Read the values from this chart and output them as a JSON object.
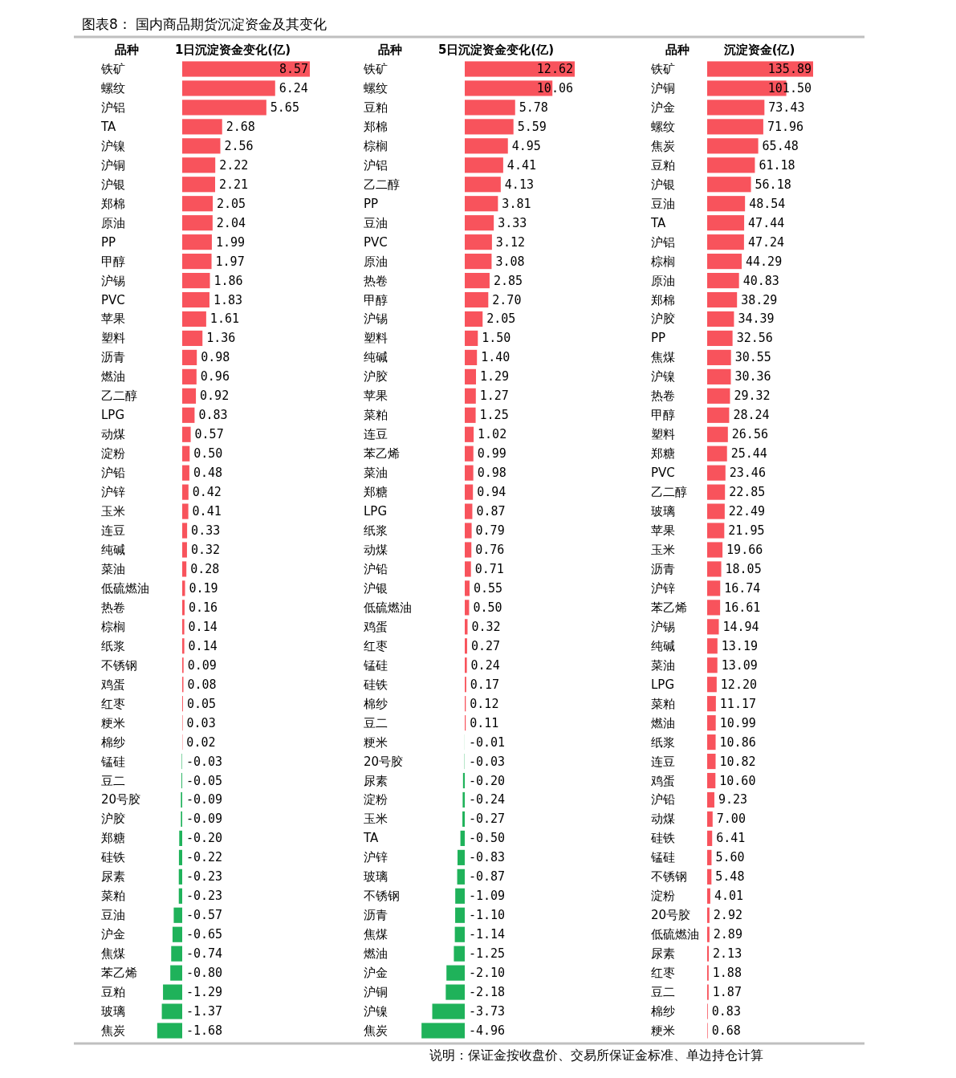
{
  "chart_data": [
    {
      "type": "bar",
      "orientation": "horizontal",
      "value_labels": [
        "8.57",
        "6.24",
        "5.65",
        "2.68",
        "2.56",
        "2.22",
        "2.21",
        "2.05",
        "2.04",
        "1.99",
        "1.97",
        "1.86",
        "1.83",
        "1.61",
        "1.36",
        "0.98",
        "0.96",
        "0.92",
        "0.83",
        "0.57",
        "0.50",
        "0.48",
        "0.42",
        "0.41",
        "0.33",
        "0.32",
        "0.28",
        "0.19",
        "0.16",
        "0.14",
        "0.14",
        "0.09",
        "0.08",
        "0.05",
        "0.03",
        "0.02",
        "-0.03",
        "-0.05",
        "-0.09",
        "-0.09",
        "-0.20",
        "-0.22",
        "-0.23",
        "-0.23",
        "-0.57",
        "-0.65",
        "-0.74",
        "-0.80",
        "-1.29",
        "-1.37",
        "-1.68"
      ],
      "title": "图表8： 国内商品期货沉淀资金及其变化",
      "ylabel": "品种",
      "xlabel": "1日沉淀资金变化(亿)",
      "categories": [
        "铁矿",
        "螺纹",
        "沪铝",
        "TA",
        "沪镍",
        "沪铜",
        "沪银",
        "郑棉",
        "原油",
        "PP",
        "甲醇",
        "沪锡",
        "PVC",
        "苹果",
        "塑料",
        "沥青",
        "燃油",
        "乙二醇",
        "LPG",
        "动煤",
        "淀粉",
        "沪铅",
        "沪锌",
        "玉米",
        "连豆",
        "纯碱",
        "菜油",
        "低硫燃油",
        "热卷",
        "棕榈",
        "纸浆",
        "不锈钢",
        "鸡蛋",
        "红枣",
        "粳米",
        "棉纱",
        "锰硅",
        "豆二",
        "20号胶",
        "沪胶",
        "郑糖",
        "硅铁",
        "尿素",
        "菜粕",
        "豆油",
        "沪金",
        "焦煤",
        "苯乙烯",
        "豆粕",
        "玻璃",
        "焦炭"
      ],
      "values": [
        8.57,
        6.24,
        5.65,
        2.68,
        2.56,
        2.22,
        2.21,
        2.05,
        2.04,
        1.99,
        1.97,
        1.86,
        1.83,
        1.61,
        1.36,
        0.98,
        0.96,
        0.92,
        0.83,
        0.57,
        0.5,
        0.48,
        0.42,
        0.41,
        0.33,
        0.32,
        0.28,
        0.19,
        0.16,
        0.14,
        0.14,
        0.09,
        0.08,
        0.05,
        0.03,
        0.02,
        -0.03,
        -0.05,
        -0.09,
        -0.09,
        -0.2,
        -0.22,
        -0.23,
        -0.23,
        -0.57,
        -0.65,
        -0.74,
        -0.8,
        -1.29,
        -1.37,
        -1.68
      ],
      "colors": [
        "#f8535c",
        "#f8535c",
        "#f8535c",
        "#f8535c",
        "#f8535c",
        "#f8535c",
        "#f8535c",
        "#f8535c",
        "#f8535c",
        "#f8535c",
        "#f8535c",
        "#f8535c",
        "#f8535c",
        "#f8535c",
        "#f8535c",
        "#f8535c",
        "#f8535c",
        "#f8535c",
        "#f8535c",
        "#f8535c",
        "#f8535c",
        "#f8535c",
        "#f8535c",
        "#f8535c",
        "#f8535c",
        "#f8535c",
        "#f8535c",
        "#f8535c",
        "#f8535c",
        "#f8535c",
        "#f8535c",
        "#f8535c",
        "#f8535c",
        "#f8535c",
        "#f8535c",
        "#f8535c",
        "#1fb25a",
        "#1fb25a",
        "#1fb25a",
        "#1fb25a",
        "#1fb25a",
        "#1fb25a",
        "#1fb25a",
        "#1fb25a",
        "#1fb25a",
        "#1fb25a",
        "#1fb25a",
        "#1fb25a",
        "#1fb25a",
        "#1fb25a",
        "#1fb25a"
      ]
    },
    {
      "type": "bar",
      "orientation": "horizontal",
      "value_labels": [
        "12.62",
        "10.06",
        "5.78",
        "5.59",
        "4.95",
        "4.41",
        "4.13",
        "3.81",
        "3.33",
        "3.12",
        "3.08",
        "2.85",
        "2.70",
        "2.05",
        "1.50",
        "1.40",
        "1.29",
        "1.27",
        "1.25",
        "1.02",
        "0.99",
        "0.98",
        "0.94",
        "0.87",
        "0.79",
        "0.76",
        "0.71",
        "0.55",
        "0.50",
        "0.32",
        "0.27",
        "0.24",
        "0.17",
        "0.12",
        "0.11",
        "-0.01",
        "-0.03",
        "-0.20",
        "-0.24",
        "-0.27",
        "-0.50",
        "-0.83",
        "-0.87",
        "-1.09",
        "-1.10",
        "-1.14",
        "-1.25",
        "-2.10",
        "-2.18",
        "-3.73",
        "-4.96"
      ],
      "ylabel": "品种",
      "xlabel": "5日沉淀资金变化(亿)",
      "categories": [
        "铁矿",
        "螺纹",
        "豆粕",
        "郑棉",
        "棕榈",
        "沪铝",
        "乙二醇",
        "PP",
        "豆油",
        "PVC",
        "原油",
        "热卷",
        "甲醇",
        "沪锡",
        "塑料",
        "纯碱",
        "沪胶",
        "苹果",
        "菜粕",
        "连豆",
        "苯乙烯",
        "菜油",
        "郑糖",
        "LPG",
        "纸浆",
        "动煤",
        "沪铅",
        "沪银",
        "低硫燃油",
        "鸡蛋",
        "红枣",
        "锰硅",
        "硅铁",
        "棉纱",
        "豆二",
        "粳米",
        "20号胶",
        "尿素",
        "淀粉",
        "玉米",
        "TA",
        "沪锌",
        "玻璃",
        "不锈钢",
        "沥青",
        "焦煤",
        "燃油",
        "沪金",
        "沪铜",
        "沪镍",
        "焦炭"
      ],
      "values": [
        12.62,
        10.06,
        5.78,
        5.59,
        4.95,
        4.41,
        4.13,
        3.81,
        3.33,
        3.12,
        3.08,
        2.85,
        2.7,
        2.05,
        1.5,
        1.4,
        1.29,
        1.27,
        1.25,
        1.02,
        0.99,
        0.98,
        0.94,
        0.87,
        0.79,
        0.76,
        0.71,
        0.55,
        0.5,
        0.32,
        0.27,
        0.24,
        0.17,
        0.12,
        0.11,
        -0.01,
        -0.03,
        -0.2,
        -0.24,
        -0.27,
        -0.5,
        -0.83,
        -0.87,
        -1.09,
        -1.1,
        -1.14,
        -1.25,
        -2.1,
        -2.18,
        -3.73,
        -4.96
      ],
      "colors": [
        "#f8535c",
        "#f8535c",
        "#f8535c",
        "#f8535c",
        "#f8535c",
        "#f8535c",
        "#f8535c",
        "#f8535c",
        "#f8535c",
        "#f8535c",
        "#f8535c",
        "#f8535c",
        "#f8535c",
        "#f8535c",
        "#f8535c",
        "#f8535c",
        "#f8535c",
        "#f8535c",
        "#f8535c",
        "#f8535c",
        "#f8535c",
        "#f8535c",
        "#f8535c",
        "#f8535c",
        "#f8535c",
        "#f8535c",
        "#f8535c",
        "#f8535c",
        "#f8535c",
        "#f8535c",
        "#f8535c",
        "#f8535c",
        "#f8535c",
        "#f8535c",
        "#f8535c",
        "#1fb25a",
        "#1fb25a",
        "#1fb25a",
        "#1fb25a",
        "#1fb25a",
        "#1fb25a",
        "#1fb25a",
        "#1fb25a",
        "#1fb25a",
        "#1fb25a",
        "#1fb25a",
        "#1fb25a",
        "#1fb25a",
        "#1fb25a",
        "#1fb25a",
        "#1fb25a"
      ]
    },
    {
      "type": "bar",
      "orientation": "horizontal",
      "value_labels": [
        "135.89",
        "101.50",
        "73.43",
        "71.96",
        "65.48",
        "61.18",
        "56.18",
        "48.54",
        "47.44",
        "47.24",
        "44.29",
        "40.83",
        "38.29",
        "34.39",
        "32.56",
        "30.55",
        "30.36",
        "29.32",
        "28.24",
        "26.56",
        "25.44",
        "23.46",
        "22.85",
        "22.49",
        "21.95",
        "19.66",
        "18.05",
        "16.74",
        "16.61",
        "14.94",
        "13.19",
        "13.09",
        "12.20",
        "11.17",
        "10.99",
        "10.86",
        "10.82",
        "10.60",
        "9.23",
        "7.00",
        "6.41",
        "5.60",
        "5.48",
        "4.01",
        "2.92",
        "2.89",
        "2.13",
        "1.88",
        "1.87",
        "0.83",
        "0.68"
      ],
      "ylabel": "品种",
      "xlabel": "沉淀资金(亿)",
      "annotations": [
        "说明：保证金按收盘价、交易所保证金标准、单边持仓计算"
      ],
      "categories": [
        "铁矿",
        "沪铜",
        "沪金",
        "螺纹",
        "焦炭",
        "豆粕",
        "沪银",
        "豆油",
        "TA",
        "沪铝",
        "棕榈",
        "原油",
        "郑棉",
        "沪胶",
        "PP",
        "焦煤",
        "沪镍",
        "热卷",
        "甲醇",
        "塑料",
        "郑糖",
        "PVC",
        "乙二醇",
        "玻璃",
        "苹果",
        "玉米",
        "沥青",
        "沪锌",
        "苯乙烯",
        "沪锡",
        "纯碱",
        "菜油",
        "LPG",
        "菜粕",
        "燃油",
        "纸浆",
        "连豆",
        "鸡蛋",
        "沪铅",
        "动煤",
        "硅铁",
        "锰硅",
        "不锈钢",
        "淀粉",
        "20号胶",
        "低硫燃油",
        "尿素",
        "红枣",
        "豆二",
        "棉纱",
        "粳米"
      ],
      "values": [
        135.89,
        101.5,
        73.43,
        71.96,
        65.48,
        61.18,
        56.18,
        48.54,
        47.44,
        47.24,
        44.29,
        40.83,
        38.29,
        34.39,
        32.56,
        30.55,
        30.36,
        29.32,
        28.24,
        26.56,
        25.44,
        23.46,
        22.85,
        22.49,
        21.95,
        19.66,
        18.05,
        16.74,
        16.61,
        14.94,
        13.19,
        13.09,
        12.2,
        11.17,
        10.99,
        10.86,
        10.82,
        10.6,
        9.23,
        7.0,
        6.41,
        5.6,
        5.48,
        4.01,
        2.92,
        2.89,
        2.13,
        1.88,
        1.87,
        0.83,
        0.68
      ],
      "colors": [
        "#f8535c",
        "#f8535c",
        "#f8535c",
        "#f8535c",
        "#f8535c",
        "#f8535c",
        "#f8535c",
        "#f8535c",
        "#f8535c",
        "#f8535c",
        "#f8535c",
        "#f8535c",
        "#f8535c",
        "#f8535c",
        "#f8535c",
        "#f8535c",
        "#f8535c",
        "#f8535c",
        "#f8535c",
        "#f8535c",
        "#f8535c",
        "#f8535c",
        "#f8535c",
        "#f8535c",
        "#f8535c",
        "#f8535c",
        "#f8535c",
        "#f8535c",
        "#f8535c",
        "#f8535c",
        "#f8535c",
        "#f8535c",
        "#f8535c",
        "#f8535c",
        "#f8535c",
        "#f8535c",
        "#f8535c",
        "#f8535c",
        "#f8535c",
        "#f8535c",
        "#f8535c",
        "#f8535c",
        "#f8535c",
        "#f8535c",
        "#f8535c",
        "#f8535c",
        "#f8535c",
        "#f8535c",
        "#f8535c",
        "#f8535c",
        "#f8535c"
      ]
    }
  ]
}
